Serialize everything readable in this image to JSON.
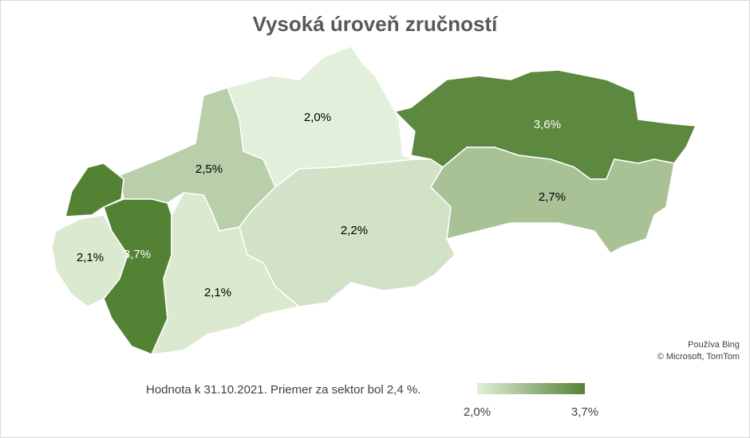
{
  "chart_data": {
    "type": "choropleth",
    "title": "Vysoká úroveň zručností",
    "values": [
      2.0,
      3.6,
      2.5,
      2.7,
      2.2,
      2.1,
      3.7,
      2.1
    ],
    "value_labels": [
      "2,0%",
      "3,6%",
      "2,5%",
      "2,7%",
      "2,2%",
      "2,1%",
      "3,7%",
      "2,1%"
    ],
    "color_range": [
      "#e2efda",
      "#548235"
    ],
    "legend": {
      "min": {
        "value": 2.0,
        "label": "2,0%"
      },
      "max": {
        "value": 3.7,
        "label": "3,7%"
      }
    },
    "note": "Hodnota k 31.10.2021. Priemer za sektor bol 2,4 %.",
    "attribution": [
      "Používa Bing",
      "© Microsoft, TomTom"
    ]
  }
}
